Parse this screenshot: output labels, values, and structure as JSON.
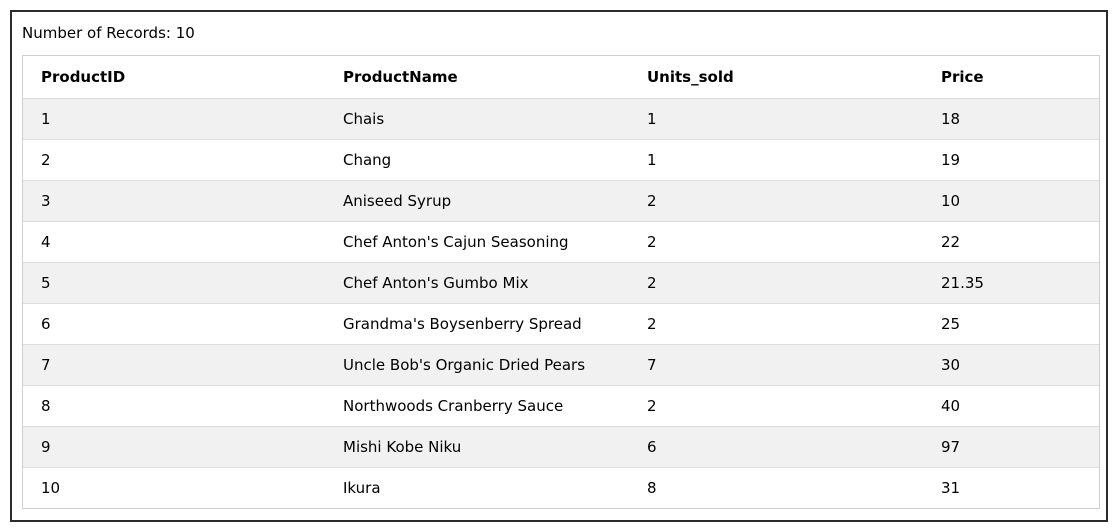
{
  "record_count_text": "Number of Records: 10",
  "table": {
    "columns": [
      "ProductID",
      "ProductName",
      "Units_sold",
      "Price"
    ],
    "rows": [
      [
        "1",
        "Chais",
        "1",
        "18"
      ],
      [
        "2",
        "Chang",
        "1",
        "19"
      ],
      [
        "3",
        "Aniseed Syrup",
        "2",
        "10"
      ],
      [
        "4",
        "Chef Anton's Cajun Seasoning",
        "2",
        "22"
      ],
      [
        "5",
        "Chef Anton's Gumbo Mix",
        "2",
        "21.35"
      ],
      [
        "6",
        "Grandma's Boysenberry Spread",
        "2",
        "25"
      ],
      [
        "7",
        "Uncle Bob's Organic Dried Pears",
        "7",
        "30"
      ],
      [
        "8",
        "Northwoods Cranberry Sauce",
        "2",
        "40"
      ],
      [
        "9",
        "Mishi Kobe Niku",
        "6",
        "97"
      ],
      [
        "10",
        "Ikura",
        "8",
        "31"
      ]
    ]
  }
}
